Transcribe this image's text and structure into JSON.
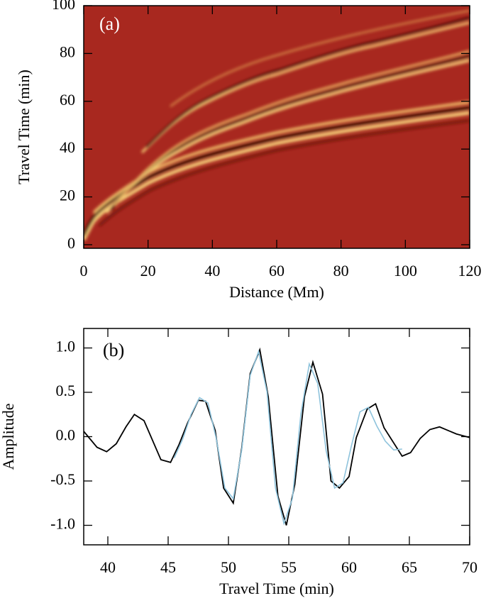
{
  "chart_data": [
    {
      "type": "heatmap",
      "annotation": "(a)",
      "xlabel": "Distance (Mm)",
      "ylabel": "Travel Time (min)",
      "xlim": [
        0,
        120
      ],
      "ylim": [
        -1.5,
        100
      ],
      "xticks": [
        0,
        20,
        40,
        60,
        80,
        100,
        120
      ],
      "yticks": [
        0,
        20,
        40,
        60,
        80,
        100
      ],
      "color": "#a8281f"
    },
    {
      "type": "line",
      "annotation": "(b)",
      "xlabel": "Travel Time (min)",
      "ylabel": "Amplitude",
      "xlim": [
        38,
        70
      ],
      "ylim": [
        -1.22,
        1.22
      ],
      "xticks": [
        40,
        45,
        50,
        55,
        60,
        65,
        70
      ],
      "yticks": [
        {
          "value": -1,
          "label": "-1.0"
        },
        {
          "value": -0.5,
          "label": "-0.5"
        },
        {
          "value": 0,
          "label": "0.0"
        },
        {
          "value": 0.5,
          "label": "0.5"
        },
        {
          "value": 1,
          "label": "1.0"
        }
      ],
      "series": [
        {
          "color": "#000000",
          "x": [
            38,
            39.1,
            39.9,
            40.7,
            41.5,
            42.2,
            43.0,
            44.4,
            45.2,
            45.9,
            46.6,
            47.5,
            48.1,
            48.9,
            49.6,
            50.4,
            51.1,
            51.8,
            52.6,
            53.3,
            54.1,
            54.8,
            55.5,
            56.3,
            57.0,
            57.8,
            58.5,
            59.2,
            60.0,
            60.6,
            61.5,
            62.2,
            62.9,
            64.4,
            65.1,
            65.9,
            66.7,
            67.5,
            68.9,
            70
          ],
          "values": [
            0.06,
            -0.12,
            -0.17,
            -0.08,
            0.11,
            0.25,
            0.18,
            -0.26,
            -0.29,
            -0.09,
            0.15,
            0.41,
            0.4,
            0.07,
            -0.58,
            -0.75,
            -0.13,
            0.71,
            0.98,
            0.45,
            -0.67,
            -1.0,
            -0.54,
            0.45,
            0.84,
            0.48,
            -0.5,
            -0.58,
            -0.45,
            -0.01,
            0.31,
            0.37,
            0.1,
            -0.22,
            -0.18,
            -0.02,
            0.08,
            0.11,
            0.03,
            -0.01
          ]
        },
        {
          "color": "#8ec3dc",
          "x": [
            45.5,
            46.2,
            46.9,
            47.6,
            48.3,
            49.0,
            49.7,
            50.4,
            51.1,
            51.8,
            52.5,
            53.2,
            53.9,
            54.6,
            55.3,
            56.0,
            56.7,
            57.4,
            58.1,
            58.8,
            59.5,
            60.2,
            60.9,
            61.6,
            62.3,
            63.0,
            63.7,
            64.4
          ],
          "values": [
            -0.24,
            -0.03,
            0.25,
            0.44,
            0.38,
            -0.03,
            -0.58,
            -0.7,
            -0.15,
            0.69,
            0.96,
            0.5,
            -0.58,
            -0.98,
            -0.7,
            0.25,
            0.82,
            0.6,
            -0.16,
            -0.58,
            -0.52,
            -0.1,
            0.28,
            0.33,
            0.12,
            -0.05,
            -0.15,
            -0.14
          ]
        }
      ]
    }
  ]
}
